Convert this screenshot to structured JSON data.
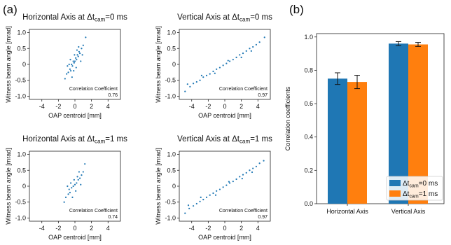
{
  "panel_labels": {
    "a": "(a)",
    "b": "(b)"
  },
  "chart_data": [
    {
      "type": "scatter",
      "title_prefix": "Horizontal Axis at ",
      "title_delta": "Δt",
      "title_sub": "cam",
      "title_suffix": "=0 ms",
      "xlabel": "OAP centroid [mm]",
      "ylabel": "Witness beam angle [mrad]",
      "xlim": [
        -5.5,
        5.5
      ],
      "ylim": [
        -1.1,
        1.1
      ],
      "xticks": [
        -4,
        -2,
        0,
        2,
        4
      ],
      "xtick_labels": [
        "-4",
        "-2",
        "0",
        "2",
        "4"
      ],
      "yticks": [
        -1.0,
        -0.5,
        0,
        0.5,
        1.0
      ],
      "ytick_labels": [
        "-1.0",
        "-0.5",
        "0",
        "0.5",
        "1.0"
      ],
      "annotation_label": "Correlation Coefficient",
      "annotation_value": "0.76",
      "color": "#1f77b4",
      "points": [
        [
          -1.0,
          -0.3
        ],
        [
          -0.8,
          -0.25
        ],
        [
          -0.6,
          -0.15
        ],
        [
          -0.5,
          -0.2
        ],
        [
          -0.4,
          0.0
        ],
        [
          -0.3,
          -0.05
        ],
        [
          -0.2,
          0.1
        ],
        [
          -0.1,
          0.05
        ],
        [
          0.0,
          0.1
        ],
        [
          0.1,
          0.2
        ],
        [
          0.2,
          0.15
        ],
        [
          0.3,
          0.3
        ],
        [
          0.4,
          0.25
        ],
        [
          0.5,
          0.4
        ],
        [
          0.6,
          0.35
        ],
        [
          0.8,
          0.5
        ],
        [
          1.0,
          0.6
        ],
        [
          -1.2,
          -0.45
        ],
        [
          -0.9,
          -0.05
        ],
        [
          -0.7,
          0.0
        ],
        [
          0.7,
          0.1
        ],
        [
          0.9,
          0.3
        ],
        [
          1.3,
          0.85
        ],
        [
          -0.35,
          -0.4
        ],
        [
          0.15,
          -0.1
        ],
        [
          -0.55,
          0.15
        ],
        [
          0.45,
          0.55
        ],
        [
          -0.15,
          -0.2
        ],
        [
          0.25,
          0.45
        ],
        [
          -0.05,
          0.3
        ]
      ]
    },
    {
      "type": "scatter",
      "title_prefix": "Vertical Axis at ",
      "title_delta": "Δt",
      "title_sub": "cam",
      "title_suffix": "=0 ms",
      "xlabel": "OAP centroid [mm]",
      "ylabel": "Witness beam angle [mrad]",
      "xlim": [
        -5.5,
        5.5
      ],
      "ylim": [
        -1.1,
        1.1
      ],
      "xticks": [
        -4,
        -2,
        0,
        2,
        4
      ],
      "xtick_labels": [
        "-4",
        "-2",
        "0",
        "2",
        "4"
      ],
      "yticks": [
        -1.0,
        -0.5,
        0,
        0.5,
        1.0
      ],
      "ytick_labels": [
        "-1.0",
        "-0.5",
        "0",
        "0.5",
        "1.0"
      ],
      "annotation_label": "Correlation Coefficient",
      "annotation_value": "0.97",
      "color": "#1f77b4",
      "points": [
        [
          -4.8,
          -0.85
        ],
        [
          -4.2,
          -0.7
        ],
        [
          -3.8,
          -0.6
        ],
        [
          -3.4,
          -0.55
        ],
        [
          -3.0,
          -0.5
        ],
        [
          -2.6,
          -0.4
        ],
        [
          -2.2,
          -0.35
        ],
        [
          -1.8,
          -0.3
        ],
        [
          -1.4,
          -0.22
        ],
        [
          -1.0,
          -0.15
        ],
        [
          -0.6,
          -0.1
        ],
        [
          -0.2,
          -0.03
        ],
        [
          0.2,
          0.03
        ],
        [
          0.6,
          0.1
        ],
        [
          1.0,
          0.15
        ],
        [
          1.4,
          0.22
        ],
        [
          1.8,
          0.3
        ],
        [
          2.2,
          0.35
        ],
        [
          2.6,
          0.42
        ],
        [
          3.0,
          0.5
        ],
        [
          3.4,
          0.55
        ],
        [
          3.8,
          0.62
        ],
        [
          4.2,
          0.7
        ],
        [
          4.8,
          0.85
        ],
        [
          -2.8,
          -0.35
        ],
        [
          -1.2,
          -0.28
        ],
        [
          0.4,
          0.12
        ],
        [
          2.0,
          0.22
        ],
        [
          3.2,
          0.42
        ],
        [
          -4.5,
          -0.62
        ]
      ]
    },
    {
      "type": "scatter",
      "title_prefix": "Horizontal Axis at ",
      "title_delta": "Δt",
      "title_sub": "cam",
      "title_suffix": "=1 ms",
      "xlabel": "OAP centroid [mm]",
      "ylabel": "Witness beam angle [mrad]",
      "xlim": [
        -5.5,
        5.5
      ],
      "ylim": [
        -1.1,
        1.1
      ],
      "xticks": [
        -4,
        -2,
        0,
        2,
        4
      ],
      "xtick_labels": [
        "-4",
        "-2",
        "0",
        "2",
        "4"
      ],
      "yticks": [
        -1.0,
        -0.5,
        0,
        0.5,
        1.0
      ],
      "ytick_labels": [
        "-1.0",
        "-0.5",
        "0",
        "0.5",
        "1.0"
      ],
      "annotation_label": "Correlation Coefficient",
      "annotation_value": "0.74",
      "color": "#1f77b4",
      "points": [
        [
          -1.1,
          -0.35
        ],
        [
          -0.8,
          -0.25
        ],
        [
          -0.6,
          -0.2
        ],
        [
          -0.4,
          -0.05
        ],
        [
          -0.2,
          0.0
        ],
        [
          0.0,
          0.05
        ],
        [
          0.2,
          0.1
        ],
        [
          0.4,
          0.2
        ],
        [
          0.6,
          0.25
        ],
        [
          0.8,
          0.35
        ],
        [
          1.0,
          0.45
        ],
        [
          -1.3,
          -0.5
        ],
        [
          -0.9,
          0.0
        ],
        [
          0.7,
          0.05
        ],
        [
          1.2,
          0.7
        ],
        [
          -0.3,
          -0.35
        ],
        [
          0.1,
          -0.15
        ],
        [
          -0.5,
          0.1
        ],
        [
          0.5,
          0.45
        ],
        [
          -0.1,
          0.2
        ],
        [
          0.3,
          0.3
        ],
        [
          -0.7,
          -0.1
        ]
      ]
    },
    {
      "type": "scatter",
      "title_prefix": "Vertical Axis at ",
      "title_delta": "Δt",
      "title_sub": "cam",
      "title_suffix": "=1 ms",
      "xlabel": "OAP centroid [mm]",
      "ylabel": "Witness beam angle [mrad]",
      "xlim": [
        -5.5,
        5.5
      ],
      "ylim": [
        -1.1,
        1.1
      ],
      "xticks": [
        -4,
        -2,
        0,
        2,
        4
      ],
      "xtick_labels": [
        "-4",
        "-2",
        "0",
        "2",
        "4"
      ],
      "yticks": [
        -1.0,
        -0.5,
        0,
        0.5,
        1.0
      ],
      "ytick_labels": [
        "-1.0",
        "-0.5",
        "0",
        "0.5",
        "1.0"
      ],
      "annotation_label": "Correlation Coefficient",
      "annotation_value": "0.97",
      "color": "#1f77b4",
      "points": [
        [
          -4.8,
          -0.85
        ],
        [
          -4.3,
          -0.7
        ],
        [
          -3.8,
          -0.62
        ],
        [
          -3.4,
          -0.55
        ],
        [
          -3.0,
          -0.48
        ],
        [
          -2.6,
          -0.42
        ],
        [
          -2.2,
          -0.35
        ],
        [
          -1.8,
          -0.28
        ],
        [
          -1.4,
          -0.22
        ],
        [
          -1.0,
          -0.15
        ],
        [
          -0.6,
          -0.1
        ],
        [
          -0.2,
          -0.03
        ],
        [
          0.2,
          0.03
        ],
        [
          0.6,
          0.1
        ],
        [
          1.0,
          0.15
        ],
        [
          1.4,
          0.22
        ],
        [
          1.8,
          0.3
        ],
        [
          2.2,
          0.36
        ],
        [
          2.6,
          0.42
        ],
        [
          3.0,
          0.5
        ],
        [
          3.4,
          0.56
        ],
        [
          3.8,
          0.62
        ],
        [
          4.2,
          0.72
        ],
        [
          4.7,
          0.8
        ],
        [
          -2.9,
          -0.35
        ],
        [
          -1.1,
          -0.28
        ],
        [
          0.5,
          0.14
        ],
        [
          2.1,
          0.24
        ],
        [
          3.3,
          0.44
        ],
        [
          -4.4,
          -0.6
        ]
      ]
    },
    {
      "type": "bar",
      "categories": [
        "Horizontal Axis",
        "Vertical Axis"
      ],
      "ylabel": "Correlation coefficients",
      "ylim": [
        0,
        1.02
      ],
      "yticks": [
        0.0,
        0.2,
        0.4,
        0.6,
        0.8,
        1.0
      ],
      "ytick_labels": [
        "0.0",
        "0.2",
        "0.4",
        "0.6",
        "0.8",
        "1.0"
      ],
      "series": [
        {
          "legend_delta": "Δt",
          "legend_sub": "cam",
          "legend_suffix": "=0 ms",
          "color": "#1f77b4",
          "values": [
            0.75,
            0.96
          ],
          "errors": [
            0.035,
            0.012
          ]
        },
        {
          "legend_delta": "Δt",
          "legend_sub": "cam",
          "legend_suffix": "=1 ms",
          "color": "#ff7f0e",
          "values": [
            0.73,
            0.955
          ],
          "errors": [
            0.04,
            0.012
          ]
        }
      ],
      "legend_position": "lower-right"
    }
  ]
}
